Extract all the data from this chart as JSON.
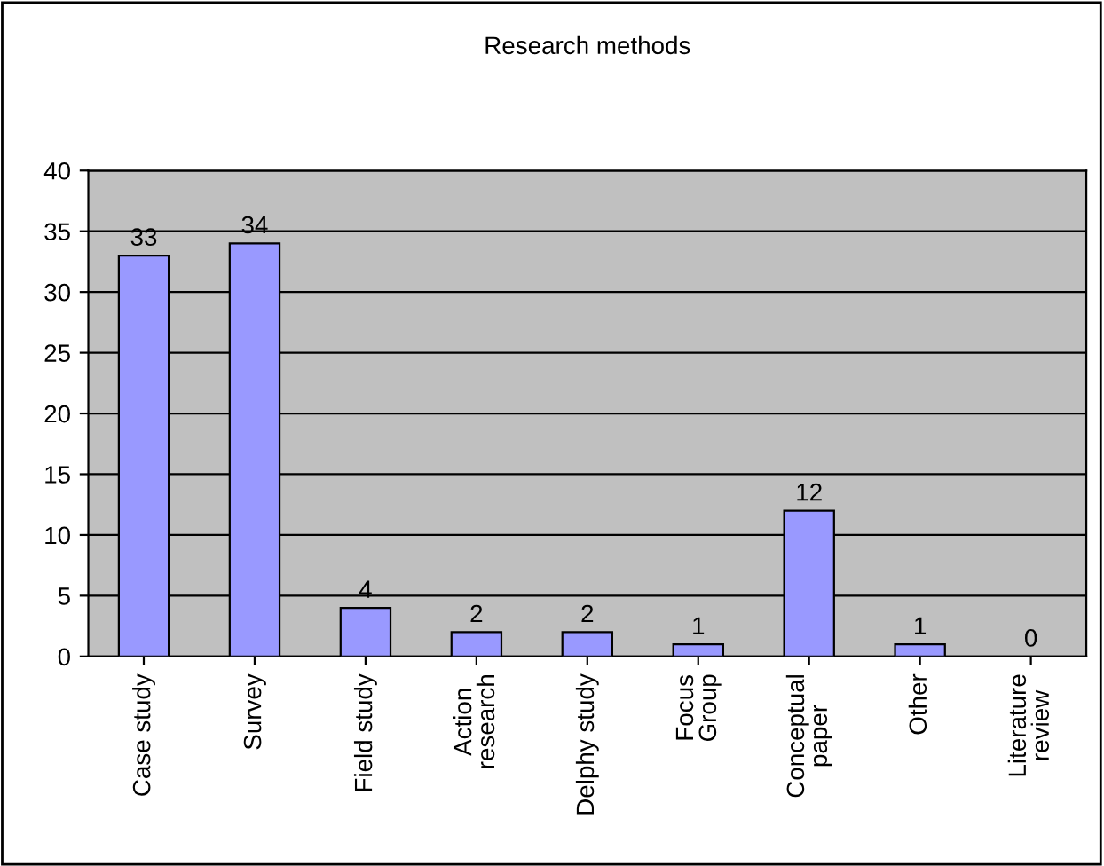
{
  "chart_data": {
    "type": "bar",
    "title": "Research methods",
    "categories": [
      "Case study",
      "Survey",
      "Field study",
      "Action\nresearch",
      "Delphy study",
      "Focus\nGroup",
      "Conceptual\npaper",
      "Other",
      "Literature\nreview"
    ],
    "values": [
      33,
      34,
      4,
      2,
      2,
      1,
      12,
      1,
      0
    ],
    "color": "#9999ff",
    "ylim": [
      0,
      40
    ],
    "yticks": [
      0,
      5,
      10,
      15,
      20,
      25,
      30,
      35,
      40
    ],
    "grid": "y",
    "data_labels": true
  }
}
